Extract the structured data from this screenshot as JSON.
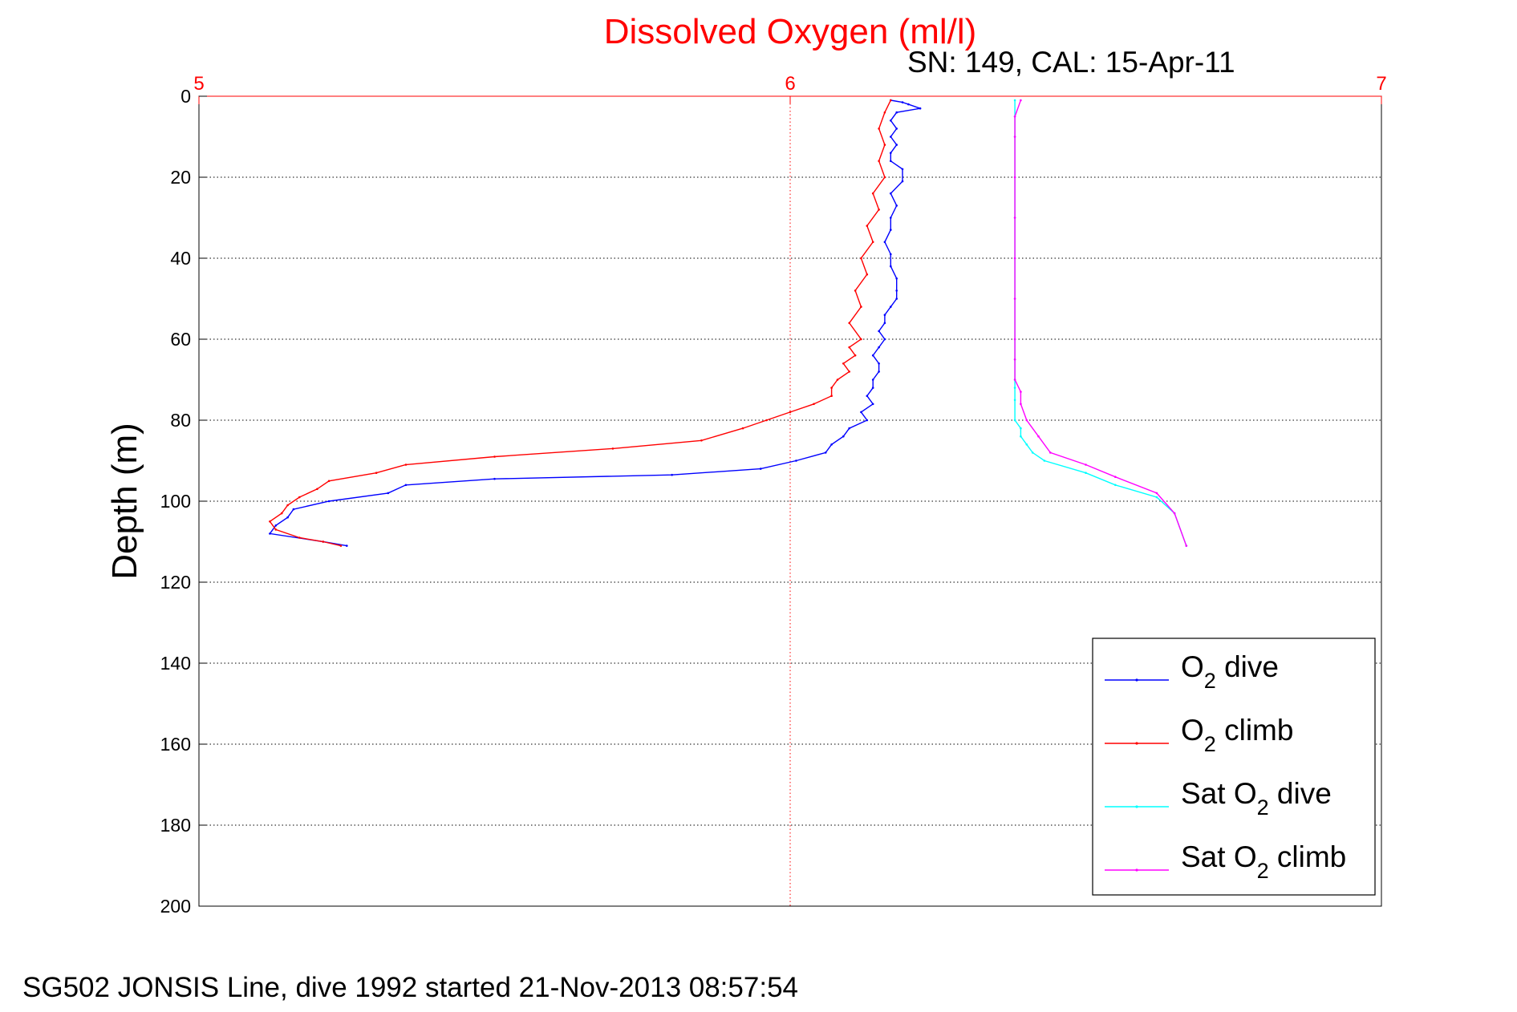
{
  "chart_data": {
    "type": "line",
    "title": "Dissolved Oxygen (ml/l)",
    "subtitle": "SN: 149, CAL: 15-Apr-11",
    "xlabel": "",
    "ylabel": "Depth (m)",
    "footer": "SG502 JONSIS Line, dive 1992 started 21-Nov-2013 08:57:54",
    "xlim": [
      5,
      7
    ],
    "ylim": [
      0,
      200
    ],
    "y_reversed": true,
    "x_axis_position": "top",
    "x_ticks": [
      "5",
      "6",
      "7"
    ],
    "y_ticks": [
      "0",
      "20",
      "40",
      "60",
      "80",
      "100",
      "120",
      "140",
      "160",
      "180",
      "200"
    ],
    "grid": true,
    "legend_position": "bottom-right",
    "colors": {
      "title": "#ff0000",
      "x_axis": "#ff0000",
      "y_axis": "#000000",
      "grid": "#000000"
    },
    "series": [
      {
        "name": "O2 dive",
        "legend_base": "O",
        "legend_sub": "2",
        "legend_tail": " dive",
        "color": "#0000ff",
        "x": [
          6.17,
          6.19,
          6.2,
          6.22,
          6.18,
          6.17,
          6.18,
          6.17,
          6.18,
          6.17,
          6.17,
          6.19,
          6.19,
          6.17,
          6.18,
          6.17,
          6.17,
          6.16,
          6.17,
          6.17,
          6.18,
          6.18,
          6.18,
          6.17,
          6.16,
          6.16,
          6.15,
          6.16,
          6.15,
          6.14,
          6.15,
          6.15,
          6.14,
          6.14,
          6.13,
          6.14,
          6.12,
          6.13,
          6.1,
          6.09,
          6.07,
          6.06,
          6.01,
          5.95,
          5.8,
          5.5,
          5.35,
          5.32,
          5.22,
          5.16,
          5.15,
          5.13,
          5.12,
          5.21,
          5.25
        ],
        "y": [
          1,
          1.5,
          2,
          3,
          4,
          6,
          8,
          10,
          12,
          14,
          16,
          18,
          21,
          24,
          27,
          30,
          33,
          36,
          39,
          42,
          45,
          48,
          50,
          52,
          54,
          56,
          58,
          60,
          62,
          64,
          66,
          68,
          70,
          72,
          74,
          76,
          78,
          80,
          82,
          84,
          86,
          88,
          90,
          92,
          93.5,
          94.5,
          96,
          98,
          100,
          102,
          104,
          106,
          108,
          110,
          111
        ]
      },
      {
        "name": "O2 climb",
        "legend_base": "O",
        "legend_sub": "2",
        "legend_tail": " climb",
        "color": "#ff0000",
        "x": [
          6.17,
          6.16,
          6.15,
          6.16,
          6.15,
          6.16,
          6.14,
          6.15,
          6.13,
          6.14,
          6.12,
          6.13,
          6.11,
          6.12,
          6.1,
          6.12,
          6.1,
          6.11,
          6.09,
          6.1,
          6.08,
          6.07,
          6.07,
          6.04,
          6.0,
          5.96,
          5.92,
          5.85,
          5.7,
          5.5,
          5.35,
          5.3,
          5.22,
          5.2,
          5.17,
          5.15,
          5.14,
          5.12,
          5.13,
          5.17,
          5.21,
          5.24
        ],
        "y": [
          1,
          4,
          8,
          12,
          16,
          20,
          24,
          28,
          32,
          36,
          40,
          44,
          48,
          52,
          56,
          60,
          62,
          64,
          66,
          68,
          70,
          72,
          74,
          76,
          78,
          80,
          82,
          85,
          87,
          89,
          91,
          93,
          95,
          97,
          99,
          101,
          103,
          105,
          107,
          109,
          110,
          111
        ]
      },
      {
        "name": "Sat O2 dive",
        "legend_base": "Sat O",
        "legend_sub": "2",
        "legend_tail": " dive",
        "color": "#00ffff",
        "x": [
          6.38,
          6.38,
          6.38,
          6.38,
          6.38,
          6.38,
          6.38,
          6.38,
          6.38,
          6.38,
          6.38,
          6.38,
          6.38,
          6.39,
          6.39,
          6.4,
          6.41,
          6.43,
          6.5,
          6.55,
          6.62,
          6.65,
          6.67
        ],
        "y": [
          1,
          5,
          10,
          20,
          30,
          40,
          50,
          60,
          65,
          70,
          72,
          75,
          80,
          82,
          84,
          86,
          88,
          90,
          93,
          96,
          99,
          103,
          111
        ]
      },
      {
        "name": "Sat O2 climb",
        "legend_base": "Sat O",
        "legend_sub": "2",
        "legend_tail": " climb",
        "color": "#ff00ff",
        "x": [
          6.39,
          6.38,
          6.38,
          6.38,
          6.38,
          6.38,
          6.38,
          6.38,
          6.38,
          6.38,
          6.39,
          6.39,
          6.4,
          6.42,
          6.44,
          6.5,
          6.55,
          6.62,
          6.65,
          6.67
        ],
        "y": [
          1,
          5,
          10,
          20,
          30,
          40,
          50,
          60,
          65,
          70,
          73,
          76,
          80,
          84,
          88,
          91,
          94,
          98,
          103,
          111
        ]
      }
    ]
  }
}
